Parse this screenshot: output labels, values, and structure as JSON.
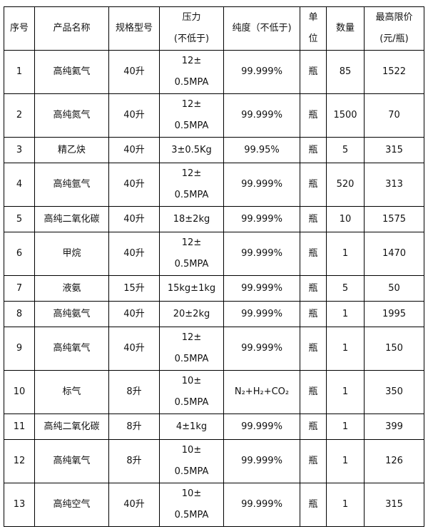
{
  "headers": [
    {
      "lines": [
        "序号"
      ]
    },
    {
      "lines": [
        "产品名称"
      ]
    },
    {
      "lines": [
        "规格型号"
      ]
    },
    {
      "lines": [
        "压力",
        "(不低于)"
      ]
    },
    {
      "lines": [
        "纯度（不低于)"
      ]
    },
    {
      "lines": [
        "单",
        "位"
      ]
    },
    {
      "lines": [
        "数量"
      ]
    },
    {
      "lines": [
        "最高限价",
        "(元/瓶)"
      ]
    }
  ],
  "rows": [
    {
      "no": "1",
      "name": "高纯氦气",
      "spec": "40升",
      "pressure": [
        "12±",
        "0.5MPA"
      ],
      "purity": "99.999%",
      "unit": "瓶",
      "qty": "85",
      "price": "1522"
    },
    {
      "no": "2",
      "name": "高纯氮气",
      "spec": "40升",
      "pressure": [
        "12±",
        "0.5MPA"
      ],
      "purity": "99.999%",
      "unit": "瓶",
      "qty": "1500",
      "price": "70"
    },
    {
      "no": "3",
      "name": "精乙炔",
      "spec": "40升",
      "pressure": [
        "3±0.5Kg"
      ],
      "purity": "99.95%",
      "unit": "瓶",
      "qty": "5",
      "price": "315"
    },
    {
      "no": "4",
      "name": "高纯氩气",
      "spec": "40升",
      "pressure": [
        "12±",
        "0.5MPA"
      ],
      "purity": "99.999%",
      "unit": "瓶",
      "qty": "520",
      "price": "313"
    },
    {
      "no": "5",
      "name": "高纯二氧化碳",
      "spec": "40升",
      "pressure": [
        "18±2kg"
      ],
      "purity": "99.999%",
      "unit": "瓶",
      "qty": "10",
      "price": "1575"
    },
    {
      "no": "6",
      "name": "甲烷",
      "spec": "40升",
      "pressure": [
        "12±",
        "0.5MPA"
      ],
      "purity": "99.999%",
      "unit": "瓶",
      "qty": "1",
      "price": "1470"
    },
    {
      "no": "7",
      "name": "液氨",
      "spec": "15升",
      "pressure": [
        "15kg±1kg"
      ],
      "purity": "99.999%",
      "unit": "瓶",
      "qty": "5",
      "price": "50"
    },
    {
      "no": "8",
      "name": "高纯氨气",
      "spec": "40升",
      "pressure": [
        "20±2kg"
      ],
      "purity": "99.999%",
      "unit": "瓶",
      "qty": "1",
      "price": "1995"
    },
    {
      "no": "9",
      "name": "高纯氧气",
      "spec": "40升",
      "pressure": [
        "12±",
        "0.5MPA"
      ],
      "purity": "99.999%",
      "unit": "瓶",
      "qty": "1",
      "price": "150"
    },
    {
      "no": "10",
      "name": "标气",
      "spec": "8升",
      "pressure": [
        "10±",
        "0.5MPA"
      ],
      "purity": "N₂+H₂+CO₂",
      "unit": "瓶",
      "qty": "1",
      "price": "350"
    },
    {
      "no": "11",
      "name": "高纯二氧化碳",
      "spec": "8升",
      "pressure": [
        "4±1kg"
      ],
      "purity": "99.999%",
      "unit": "瓶",
      "qty": "1",
      "price": "399"
    },
    {
      "no": "12",
      "name": "高纯氧气",
      "spec": "8升",
      "pressure": [
        "10±",
        "0.5MPA"
      ],
      "purity": "99.999%",
      "unit": "瓶",
      "qty": "1",
      "price": "126"
    },
    {
      "no": "13",
      "name": "高纯空气",
      "spec": "40升",
      "pressure": [
        "10±",
        "0.5MPA"
      ],
      "purity": "99.999%",
      "unit": "瓶",
      "qty": "1",
      "price": "315"
    }
  ]
}
